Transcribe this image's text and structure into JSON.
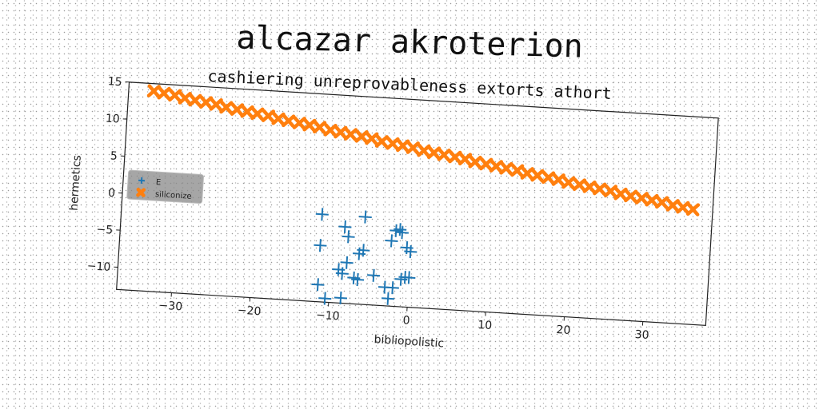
{
  "chart_data": {
    "type": "scatter",
    "title": "alcazar akroterion",
    "subtitle": "cashiering unreprovableness extorts athort",
    "xlabel": "bibliopolistic",
    "ylabel": "hermetics",
    "xlim": [
      -37,
      38
    ],
    "ylim": [
      -13,
      15
    ],
    "x_ticks": [
      -30,
      -20,
      -10,
      0,
      10,
      20,
      30
    ],
    "y_ticks": [
      15,
      10,
      5,
      0,
      -5,
      -10
    ],
    "grid": false,
    "legend_position": "center-left",
    "series": [
      {
        "name": "E",
        "marker": "plus",
        "color": "#1f77b4",
        "points": [
          [
            -11.5,
            -1.2
          ],
          [
            -6,
            -1.2
          ],
          [
            -8.5,
            -2.7
          ],
          [
            -2,
            -2.8
          ],
          [
            -1.5,
            -2.6
          ],
          [
            -1.2,
            -3.0
          ],
          [
            -8,
            -4.0
          ],
          [
            -2.5,
            -4.2
          ],
          [
            -0.5,
            -5.0
          ],
          [
            -11.5,
            -5.4
          ],
          [
            -6,
            -5.7
          ],
          [
            0,
            -5.5
          ],
          [
            -6.5,
            -6.2
          ],
          [
            -8,
            -7.5
          ],
          [
            -4.5,
            -9.0
          ],
          [
            -8.5,
            -9.0
          ],
          [
            -6.5,
            -9.7
          ],
          [
            -9,
            -8.5
          ],
          [
            -7,
            -9.5
          ],
          [
            -1,
            -9.3
          ],
          [
            -0.5,
            -9.0
          ],
          [
            0,
            -9.0
          ],
          [
            -2,
            -10.5
          ],
          [
            -3,
            -10.5
          ],
          [
            -11.5,
            -10.7
          ],
          [
            -10.5,
            -12.5
          ],
          [
            -8.5,
            -12.3
          ],
          [
            -2.5,
            -12.0
          ]
        ]
      },
      {
        "name": "siliconize",
        "marker": "x-filled",
        "color": "#ff7f0e",
        "x": [
          -33.8,
          -32.5,
          -31.1,
          -29.8,
          -28.5,
          -27.1,
          -25.8,
          -24.5,
          -23.1,
          -21.8,
          -20.5,
          -19.1,
          -17.8,
          -16.5,
          -15.1,
          -13.8,
          -12.5,
          -11.1,
          -9.8,
          -8.5,
          -7.1,
          -5.8,
          -4.5,
          -3.1,
          -1.8,
          -0.5,
          0.9,
          2.2,
          3.5,
          4.9,
          6.2,
          7.5,
          8.9,
          10.2,
          11.5,
          12.9,
          14.2,
          15.5,
          16.9,
          18.2,
          19.5,
          20.9,
          22.2,
          23.5,
          24.9,
          26.2,
          27.5,
          28.9,
          30.2,
          31.5,
          32.9,
          34.2,
          35.5
        ],
        "y": [
          14.0,
          13.8,
          13.6,
          13.3,
          13.1,
          12.9,
          12.7,
          12.4,
          12.2,
          12.0,
          11.8,
          11.6,
          11.3,
          11.1,
          10.9,
          10.7,
          10.5,
          10.2,
          10.0,
          9.8,
          9.6,
          9.4,
          9.1,
          8.9,
          8.7,
          8.5,
          8.2,
          8.0,
          7.8,
          7.6,
          7.4,
          7.1,
          6.9,
          6.7,
          6.5,
          6.3,
          6.0,
          5.8,
          5.6,
          5.4,
          5.1,
          4.9,
          4.7,
          4.5,
          4.3,
          4.0,
          3.8,
          3.6,
          3.4,
          3.2,
          2.9,
          2.7,
          2.5
        ]
      }
    ]
  }
}
